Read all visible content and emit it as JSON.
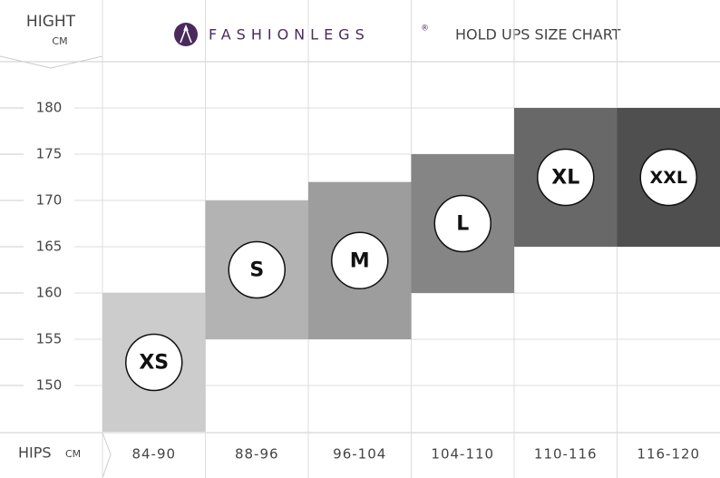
{
  "chart_data": {
    "type": "range-bar",
    "brand": "FASHIONLEGS",
    "brand_mark": "®",
    "title": "HOLD UPS SIZE CHART",
    "y_label": "HIGHT",
    "y_unit": "CM",
    "x_label": "HIPS",
    "x_unit": "CM",
    "categories": [
      "84-90",
      "88-96",
      "96-104",
      "104-110",
      "110-116",
      "116-120"
    ],
    "sizes": [
      "XS",
      "S",
      "M",
      "L",
      "XL",
      "XXL"
    ],
    "low": [
      145,
      155,
      155,
      160,
      165,
      165
    ],
    "high": [
      160,
      170,
      172,
      175,
      180,
      180
    ],
    "colors": [
      "#cccccc",
      "#b3b3b3",
      "#9d9d9d",
      "#858585",
      "#686868",
      "#4f4f4f"
    ],
    "ylim": [
      145,
      185
    ],
    "yticks": [
      150,
      155,
      160,
      165,
      170,
      175,
      180
    ],
    "grid": true
  }
}
